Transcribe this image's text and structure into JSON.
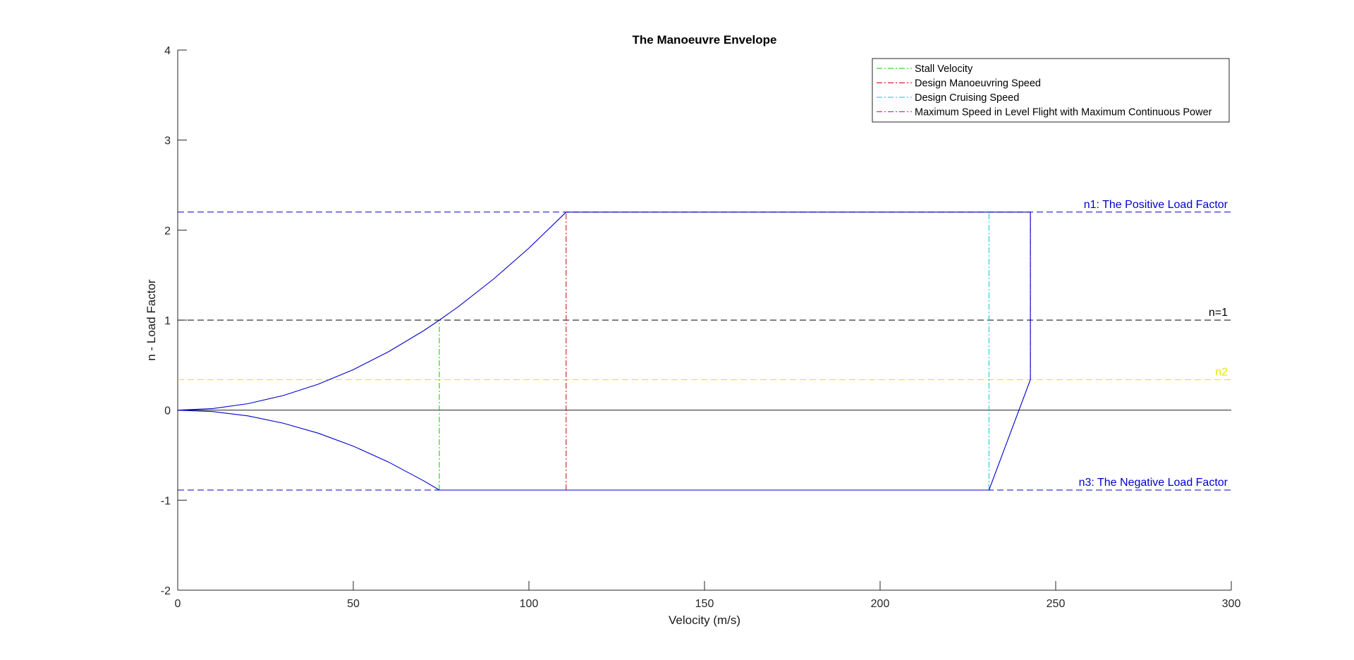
{
  "chart_data": {
    "type": "line",
    "title": "The Manoeuvre Envelope",
    "xlabel": "Velocity (m/s)",
    "ylabel": "n - Load Factor",
    "xlim": [
      0,
      300
    ],
    "ylim": [
      -2,
      4
    ],
    "xticks": [
      0,
      50,
      100,
      150,
      200,
      250,
      300
    ],
    "yticks": [
      -2,
      -1,
      0,
      1,
      2,
      3,
      4
    ],
    "grid": false,
    "legend_location": "top-right",
    "envelope": {
      "color": "#0000cc",
      "upper_curve": {
        "x": [
          0,
          10,
          20,
          30,
          40,
          50,
          60,
          70,
          74.5,
          80,
          90,
          100,
          110.6
        ],
        "y": [
          0,
          0.018,
          0.072,
          0.162,
          0.288,
          0.45,
          0.648,
          0.882,
          1.0,
          1.152,
          1.458,
          1.8,
          2.2
        ]
      },
      "lower_curve": {
        "x": [
          0,
          10,
          20,
          30,
          40,
          50,
          60,
          70,
          74.5
        ],
        "y": [
          0,
          -0.016,
          -0.064,
          -0.144,
          -0.256,
          -0.4,
          -0.576,
          -0.784,
          -0.888
        ]
      },
      "top_edge": {
        "x": [
          110.6,
          242.8
        ],
        "y": [
          2.2,
          2.2
        ]
      },
      "bottom_edge": {
        "x": [
          74.5,
          231.0
        ],
        "y": [
          -0.888,
          -0.888
        ]
      },
      "right_edge": {
        "x": [
          231.0,
          242.8,
          242.8
        ],
        "y": [
          -0.888,
          0.338,
          2.2
        ]
      }
    },
    "reference_lines": [
      {
        "label": "n1: The Positive Load Factor",
        "y": 2.2,
        "color": "#0000cc",
        "style": "dashed"
      },
      {
        "label": "n=1",
        "y": 1.0,
        "color": "#000000",
        "style": "dashed"
      },
      {
        "label": "n2",
        "y": 0.338,
        "color": "#e6e600",
        "style": "dashed"
      },
      {
        "label": "n3: The Negative Load Factor",
        "y": -0.888,
        "color": "#0000cc",
        "style": "dashed"
      }
    ],
    "zero_line": {
      "y": 0,
      "color": "#000000"
    },
    "series": [
      {
        "name": "Stall Velocity",
        "x": 74.5,
        "y_range": [
          -0.888,
          1.0
        ],
        "color": "#00cc00",
        "style": "dashdot"
      },
      {
        "name": "Design Manoeuvring Speed",
        "x": 110.6,
        "y_range": [
          -0.888,
          2.2
        ],
        "color": "#cc0000",
        "style": "dashdot"
      },
      {
        "name": "Design Cruising Speed",
        "x": 231.0,
        "y_range": [
          -0.888,
          2.2
        ],
        "color": "#00cccc",
        "style": "dashdot"
      },
      {
        "name": "Maximum Speed in Level Flight with Maximum Continuous Power",
        "x": 242.8,
        "y_range": [
          0.338,
          2.2
        ],
        "color": "#cc00cc",
        "style": "dashdot"
      }
    ]
  }
}
